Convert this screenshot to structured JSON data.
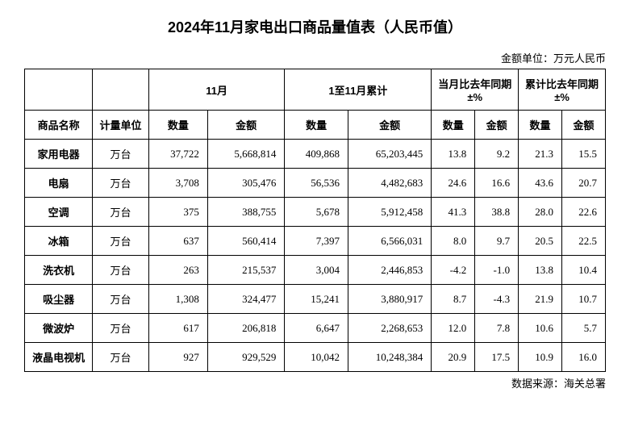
{
  "title": "2024年11月家电出口商品量值表（人民币值）",
  "unit_label": "金额单位：万元人民币",
  "source_label": "数据来源：海关总署",
  "headers": {
    "month": "11月",
    "cumulative": "1至11月累计",
    "mom_pct": "当月比去年同期±%",
    "cum_pct": "累计比去年同期±%",
    "product_name": "商品名称",
    "unit": "计量单位",
    "qty": "数量",
    "amount": "金额"
  },
  "rows": [
    {
      "name": "家用电器",
      "unit": "万台",
      "m_qty": "37,722",
      "m_amt": "5,668,814",
      "c_qty": "409,868",
      "c_amt": "65,203,445",
      "mq": "13.8",
      "ma": "9.2",
      "cq": "21.3",
      "ca": "15.5"
    },
    {
      "name": "电扇",
      "unit": "万台",
      "m_qty": "3,708",
      "m_amt": "305,476",
      "c_qty": "56,536",
      "c_amt": "4,482,683",
      "mq": "24.6",
      "ma": "16.6",
      "cq": "43.6",
      "ca": "20.7"
    },
    {
      "name": "空调",
      "unit": "万台",
      "m_qty": "375",
      "m_amt": "388,755",
      "c_qty": "5,678",
      "c_amt": "5,912,458",
      "mq": "41.3",
      "ma": "38.8",
      "cq": "28.0",
      "ca": "22.6"
    },
    {
      "name": "冰箱",
      "unit": "万台",
      "m_qty": "637",
      "m_amt": "560,414",
      "c_qty": "7,397",
      "c_amt": "6,566,031",
      "mq": "8.0",
      "ma": "9.7",
      "cq": "20.5",
      "ca": "22.5"
    },
    {
      "name": "洗衣机",
      "unit": "万台",
      "m_qty": "263",
      "m_amt": "215,537",
      "c_qty": "3,004",
      "c_amt": "2,446,853",
      "mq": "-4.2",
      "ma": "-1.0",
      "cq": "13.8",
      "ca": "10.4"
    },
    {
      "name": "吸尘器",
      "unit": "万台",
      "m_qty": "1,308",
      "m_amt": "324,477",
      "c_qty": "15,241",
      "c_amt": "3,880,917",
      "mq": "8.7",
      "ma": "-4.3",
      "cq": "21.9",
      "ca": "10.7"
    },
    {
      "name": "微波炉",
      "unit": "万台",
      "m_qty": "617",
      "m_amt": "206,818",
      "c_qty": "6,647",
      "c_amt": "2,268,653",
      "mq": "12.0",
      "ma": "7.8",
      "cq": "10.6",
      "ca": "5.7"
    },
    {
      "name": "液晶电视机",
      "unit": "万台",
      "m_qty": "927",
      "m_amt": "929,529",
      "c_qty": "10,042",
      "c_amt": "10,248,384",
      "mq": "20.9",
      "ma": "17.5",
      "cq": "10.9",
      "ca": "16.0"
    }
  ],
  "styling": {
    "type": "table",
    "border_color": "#000000",
    "background_color": "#ffffff",
    "title_fontsize": 18,
    "cell_fontsize": 13,
    "font_family_header": "Microsoft YaHei",
    "font_family_body": "SimSun",
    "numeric_align": "right",
    "text_align": "center"
  }
}
